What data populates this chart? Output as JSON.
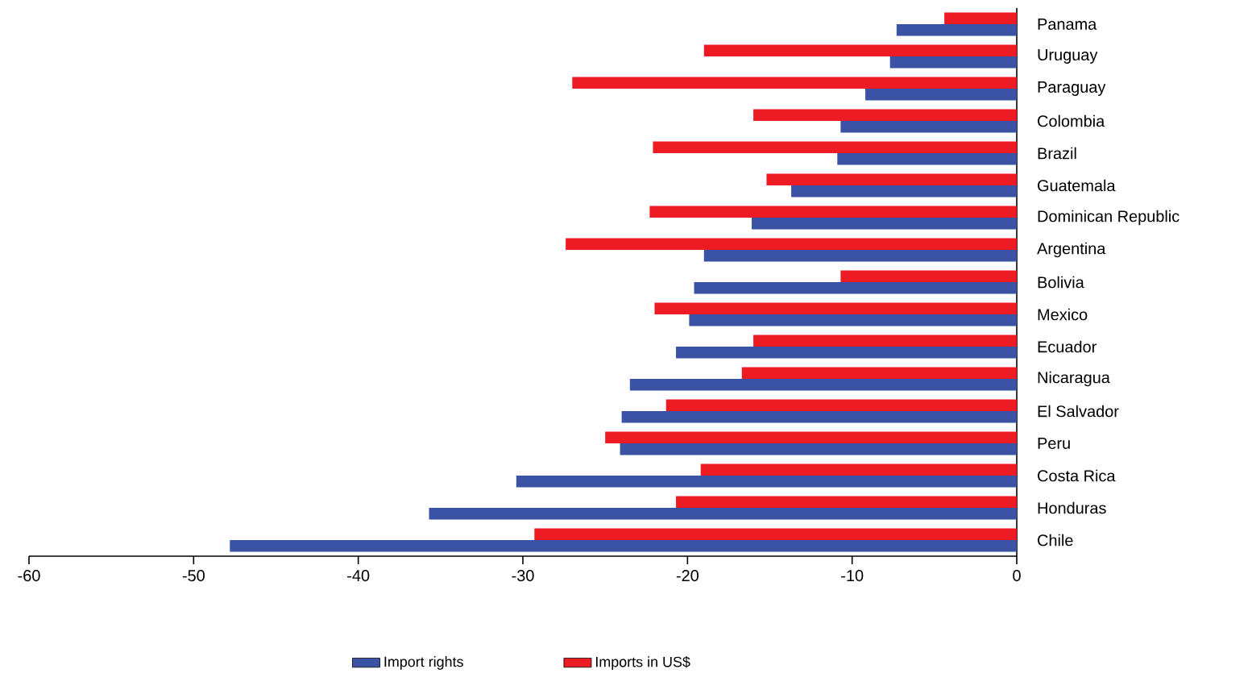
{
  "chart_data": {
    "type": "bar",
    "orientation": "horizontal",
    "categories": [
      "Panama",
      "Uruguay",
      "Paraguay",
      "Colombia",
      "Brazil",
      "Guatemala",
      "Dominican Republic",
      "Argentina",
      "Bolivia",
      "Mexico",
      "Ecuador",
      "Nicaragua",
      "El Salvador",
      "Peru",
      "Costa Rica",
      "Honduras",
      "Chile"
    ],
    "series": [
      {
        "name": "Import rights",
        "color": "#3a53a4",
        "values": [
          -7.3,
          -7.7,
          -9.2,
          -10.7,
          -10.9,
          -13.7,
          -16.1,
          -19.0,
          -19.6,
          -19.9,
          -20.7,
          -23.5,
          -24.0,
          -24.1,
          -30.4,
          -35.7,
          -47.8
        ]
      },
      {
        "name": "Imports in US$",
        "color": "#ed1c24",
        "values": [
          -4.4,
          -19.0,
          -27.0,
          -16.0,
          -22.1,
          -15.2,
          -22.3,
          -27.4,
          -10.7,
          -22.0,
          -16.0,
          -16.7,
          -21.3,
          -25.0,
          -19.2,
          -20.7,
          -29.3
        ]
      }
    ],
    "xlim": [
      -60,
      0
    ],
    "xticks": [
      -60,
      -50,
      -40,
      -30,
      -20,
      -10,
      0
    ],
    "legend": "bottom"
  }
}
